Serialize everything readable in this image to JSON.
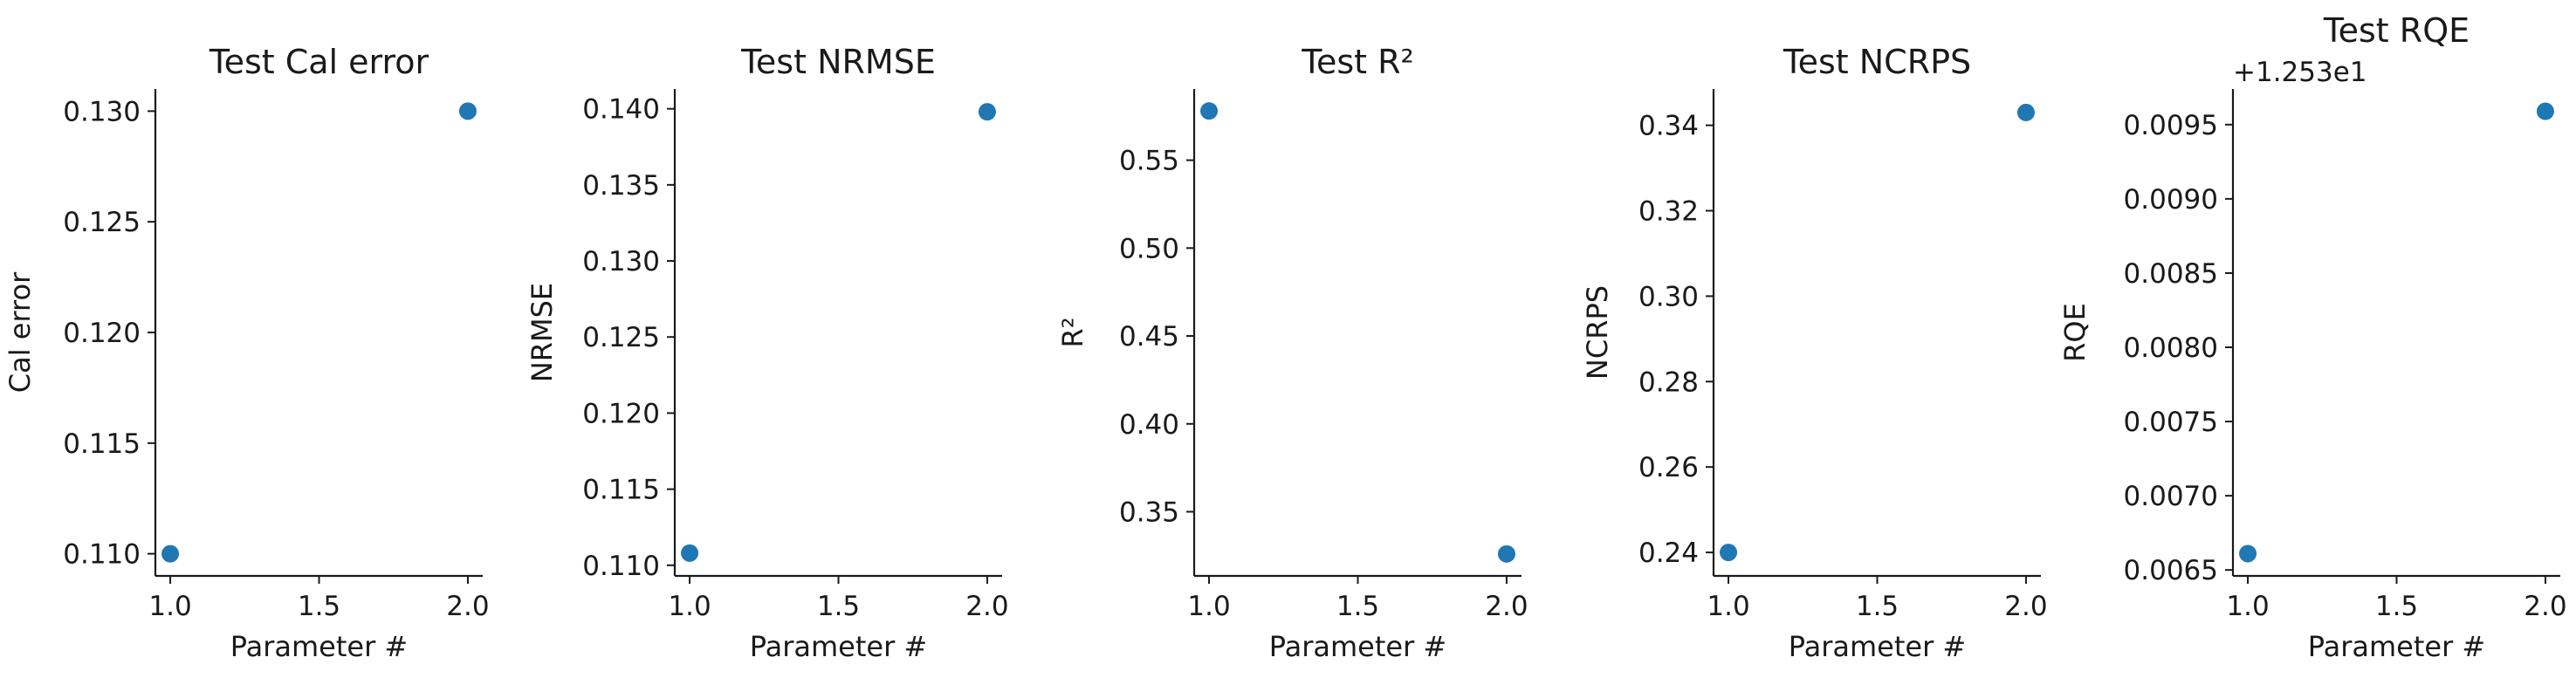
{
  "chart_data": [
    {
      "type": "scatter",
      "title": "Test Cal error",
      "xlabel": "Parameter #",
      "ylabel": "Cal error",
      "x": [
        1.0,
        2.0
      ],
      "y": [
        0.11,
        0.13
      ],
      "xlim": [
        0.95,
        2.05
      ],
      "ylim": [
        0.109,
        0.131
      ],
      "xticks": [
        1.0,
        1.5,
        2.0
      ],
      "xtick_labels": [
        "1.0",
        "1.5",
        "2.0"
      ],
      "yticks": [
        0.11,
        0.115,
        0.12,
        0.125,
        0.13
      ],
      "ytick_labels": [
        "0.110",
        "0.115",
        "0.120",
        "0.125",
        "0.130"
      ],
      "offset_text": "",
      "color": "#1f77b4",
      "grid": false
    },
    {
      "type": "scatter",
      "title": "Test NRMSE",
      "xlabel": "Parameter #",
      "ylabel": "NRMSE",
      "x": [
        1.0,
        2.0
      ],
      "y": [
        0.1108,
        0.1398
      ],
      "xlim": [
        0.95,
        2.05
      ],
      "ylim": [
        0.1093,
        0.1413
      ],
      "xticks": [
        1.0,
        1.5,
        2.0
      ],
      "xtick_labels": [
        "1.0",
        "1.5",
        "2.0"
      ],
      "yticks": [
        0.11,
        0.115,
        0.12,
        0.125,
        0.13,
        0.135,
        0.14
      ],
      "ytick_labels": [
        "0.110",
        "0.115",
        "0.120",
        "0.125",
        "0.130",
        "0.135",
        "0.140"
      ],
      "offset_text": "",
      "color": "#1f77b4",
      "grid": false
    },
    {
      "type": "scatter",
      "title": "Test R²",
      "xlabel": "Parameter #",
      "ylabel": "R²",
      "x": [
        1.0,
        2.0
      ],
      "y": [
        0.578,
        0.326
      ],
      "xlim": [
        0.95,
        2.05
      ],
      "ylim": [
        0.3135,
        0.5905
      ],
      "xticks": [
        1.0,
        1.5,
        2.0
      ],
      "xtick_labels": [
        "1.0",
        "1.5",
        "2.0"
      ],
      "yticks": [
        0.35,
        0.4,
        0.45,
        0.5,
        0.55
      ],
      "ytick_labels": [
        "0.35",
        "0.40",
        "0.45",
        "0.50",
        "0.55"
      ],
      "offset_text": "",
      "color": "#1f77b4",
      "grid": false
    },
    {
      "type": "scatter",
      "title": "Test NCRPS",
      "xlabel": "Parameter #",
      "ylabel": "NCRPS",
      "x": [
        1.0,
        2.0
      ],
      "y": [
        0.24,
        0.343
      ],
      "xlim": [
        0.95,
        2.05
      ],
      "ylim": [
        0.2345,
        0.3485
      ],
      "xticks": [
        1.0,
        1.5,
        2.0
      ],
      "xtick_labels": [
        "1.0",
        "1.5",
        "2.0"
      ],
      "yticks": [
        0.24,
        0.26,
        0.28,
        0.3,
        0.32,
        0.34
      ],
      "ytick_labels": [
        "0.24",
        "0.26",
        "0.28",
        "0.30",
        "0.32",
        "0.34"
      ],
      "offset_text": "",
      "color": "#1f77b4",
      "grid": false
    },
    {
      "type": "scatter",
      "title": "Test RQE",
      "xlabel": "Parameter #",
      "ylabel": "RQE",
      "x": [
        1.0,
        2.0
      ],
      "y": [
        0.00661,
        0.00959
      ],
      "xlim": [
        0.95,
        2.05
      ],
      "ylim": [
        0.00646,
        0.00974
      ],
      "xticks": [
        1.0,
        1.5,
        2.0
      ],
      "xtick_labels": [
        "1.0",
        "1.5",
        "2.0"
      ],
      "yticks": [
        0.0065,
        0.007,
        0.0075,
        0.008,
        0.0085,
        0.009,
        0.0095
      ],
      "ytick_labels": [
        "0.0065",
        "0.0070",
        "0.0075",
        "0.0080",
        "0.0085",
        "0.0090",
        "0.0095"
      ],
      "offset_text": "+1.253e1",
      "color": "#1f77b4",
      "grid": false
    }
  ]
}
